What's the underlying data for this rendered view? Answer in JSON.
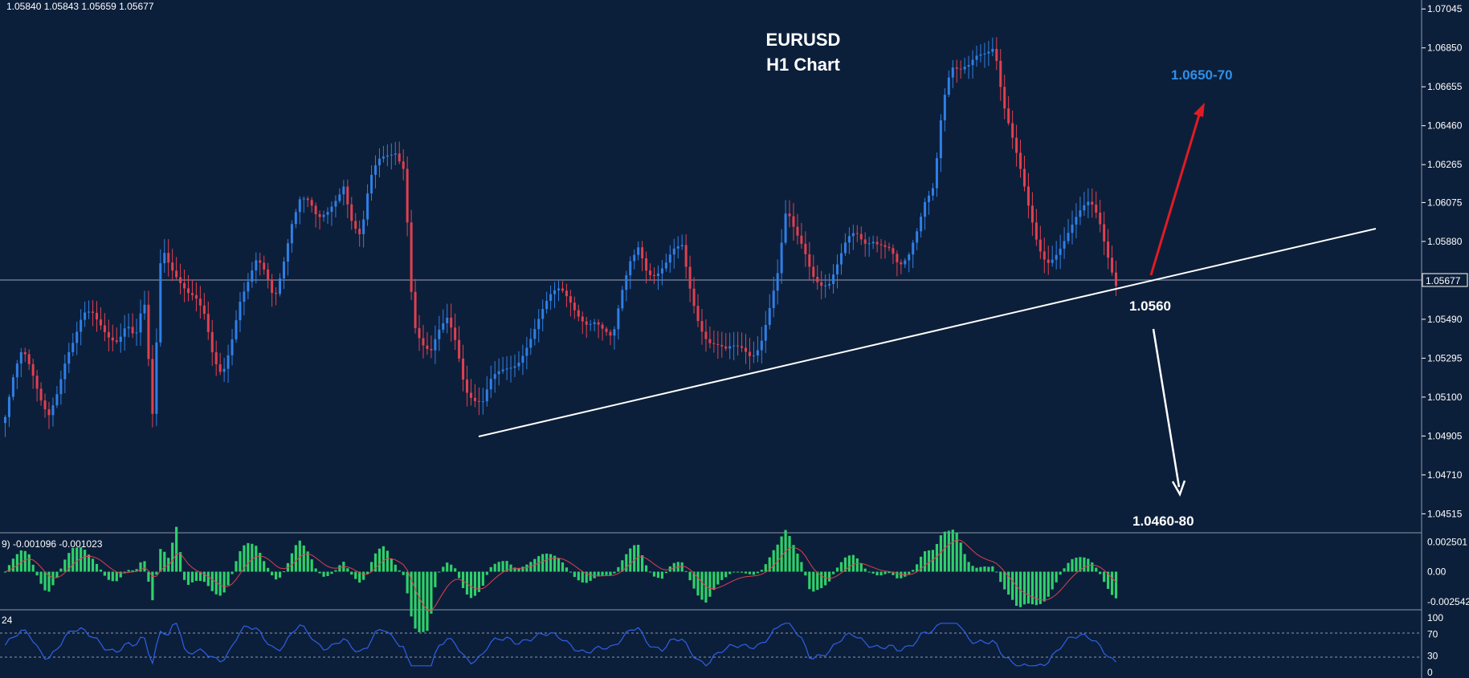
{
  "chart_data": {
    "type": "candlestick",
    "symbol_title": "EURUSD",
    "timeframe_title": "H1 Chart",
    "ohlc_readout": "1.05840 1.05843 1.05659 1.05677",
    "current_price_label": "1.05677",
    "price_axis": {
      "ticks": [
        "1.07045",
        "1.06850",
        "1.06655",
        "1.06460",
        "1.06265",
        "1.06075",
        "1.05880",
        "1.05677",
        "1.05490",
        "1.05295",
        "1.05100",
        "1.04905",
        "1.04710",
        "1.04515"
      ],
      "ylim": [
        1.0442,
        1.0709
      ]
    },
    "candles_close_path": [
      1.05,
      1.0518,
      1.053,
      1.0522,
      1.0512,
      1.0505,
      1.0515,
      1.0528,
      1.0535,
      1.0548,
      1.0552,
      1.0549,
      1.0544,
      1.054,
      1.0545,
      1.0535,
      1.0556,
      1.05,
      1.059,
      1.058,
      1.057,
      1.056,
      1.0555,
      1.0548,
      1.053,
      1.0525,
      1.054,
      1.0558,
      1.0565,
      1.0575,
      1.057,
      1.056,
      1.058,
      1.06,
      1.061,
      1.0605,
      1.0595,
      1.06,
      1.061,
      1.062,
      1.06,
      1.059,
      1.0615,
      1.0625,
      1.063,
      1.0635,
      1.0628,
      1.055,
      1.0535,
      1.0528,
      1.054,
      1.055,
      1.054,
      1.0518,
      1.051,
      1.0505,
      1.0515,
      1.052,
      1.0525,
      1.053,
      1.0538,
      1.0545,
      1.0552,
      1.0558,
      1.0562,
      1.056,
      1.0555,
      1.055,
      1.0548,
      1.054,
      1.0535,
      1.056,
      1.058,
      1.059,
      1.0575,
      1.057,
      1.0572,
      1.058,
      1.0585,
      1.0565,
      1.055,
      1.054,
      1.0535,
      1.053,
      1.0532,
      1.0534,
      1.0533,
      1.054,
      1.0555,
      1.057,
      1.06,
      1.059,
      1.0585,
      1.0575,
      1.057,
      1.0568,
      1.0575,
      1.0585,
      1.059,
      1.0588,
      1.0592,
      1.059,
      1.0585,
      1.0572,
      1.0575,
      1.059,
      1.061,
      1.062,
      1.066,
      1.0675,
      1.067,
      1.0672,
      1.068,
      1.0685,
      1.069,
      1.066,
      1.064,
      1.062,
      1.06,
      1.0585,
      1.058,
      1.0585,
      1.059,
      1.0595,
      1.06,
      1.0605,
      1.06,
      1.0585,
      1.057
    ],
    "annotations": {
      "target_up": "1.0650-70",
      "support": "1.0560",
      "target_down": "1.0460-80"
    },
    "trendline": {
      "from_index": 0,
      "from_price": 1.0491,
      "to_index": 1,
      "to_price": 1.0587
    },
    "macd": {
      "label": "9) -0.001096 -0.001023",
      "ticks": [
        "0.002501",
        "0.00",
        "-0.002542"
      ],
      "ylim": [
        -0.0032,
        0.0032
      ]
    },
    "rsi": {
      "label": "24",
      "ticks": [
        "100",
        "70",
        "30",
        "0"
      ],
      "levels": [
        70,
        30
      ],
      "ylim": [
        0,
        100
      ]
    },
    "colors": {
      "background": "#0c1f3a",
      "bull_candle": "#2f7fe6",
      "bear_candle": "#e0404f",
      "macd_hist": "#2fd06a",
      "macd_signal": "#e0404f",
      "rsi_line": "#2f5fe6",
      "arrow_up": "#e21b23",
      "target_up_text": "#2f8fe8",
      "text": "#ffffff"
    }
  }
}
